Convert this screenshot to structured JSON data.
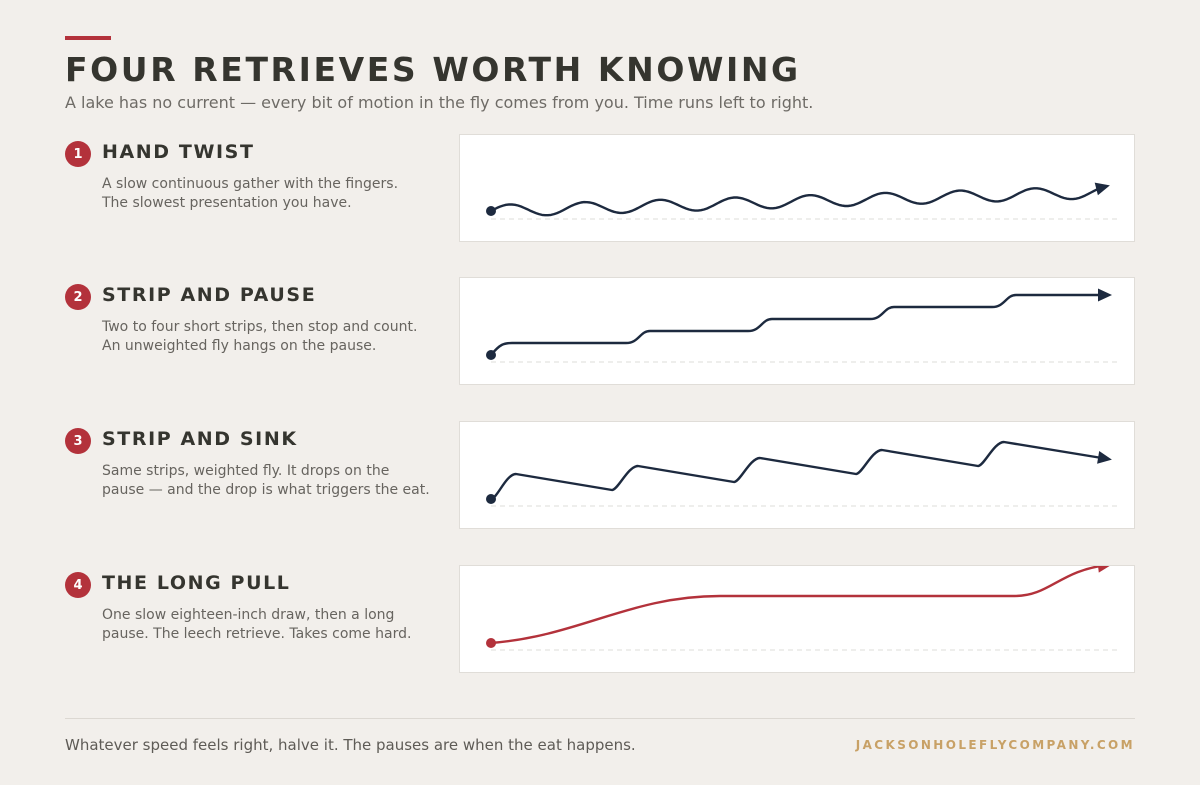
{
  "header": {
    "title": "FOUR RETRIEVES WORTH KNOWING",
    "subtitle": "A lake has no current — every bit of motion in the fly comes from you. Time runs left to right."
  },
  "colors": {
    "accent": "#b3323b",
    "line_dark": "#1d2a3f",
    "brand": "#c8a166",
    "background": "#f2efeb"
  },
  "retrieves": [
    {
      "number": "1",
      "title": "HAND TWIST",
      "desc_lines": [
        "A slow continuous gather with the fingers.",
        "The slowest presentation you have."
      ],
      "pattern": "wave",
      "line_color": "#1d2a3f"
    },
    {
      "number": "2",
      "title": "STRIP AND PAUSE",
      "desc_lines": [
        "Two to four short strips, then stop and count.",
        "An unweighted fly hangs on the pause."
      ],
      "pattern": "steps",
      "line_color": "#1d2a3f"
    },
    {
      "number": "3",
      "title": "STRIP AND SINK",
      "desc_lines": [
        "Same strips, weighted fly. It drops on the",
        "pause — and the drop is what triggers the eat."
      ],
      "pattern": "sawtooth",
      "line_color": "#1d2a3f"
    },
    {
      "number": "4",
      "title": "THE LONG PULL",
      "desc_lines": [
        "One slow eighteen-inch draw, then a long",
        "pause. The leech retrieve. Takes come hard."
      ],
      "pattern": "long-pull",
      "line_color": "#b3323b"
    }
  ],
  "footer": {
    "note": "Whatever speed feels right, halve it. The pauses are when the eat happens.",
    "brand": "JACKSONHOLEFLYCOMPANY.COM"
  }
}
